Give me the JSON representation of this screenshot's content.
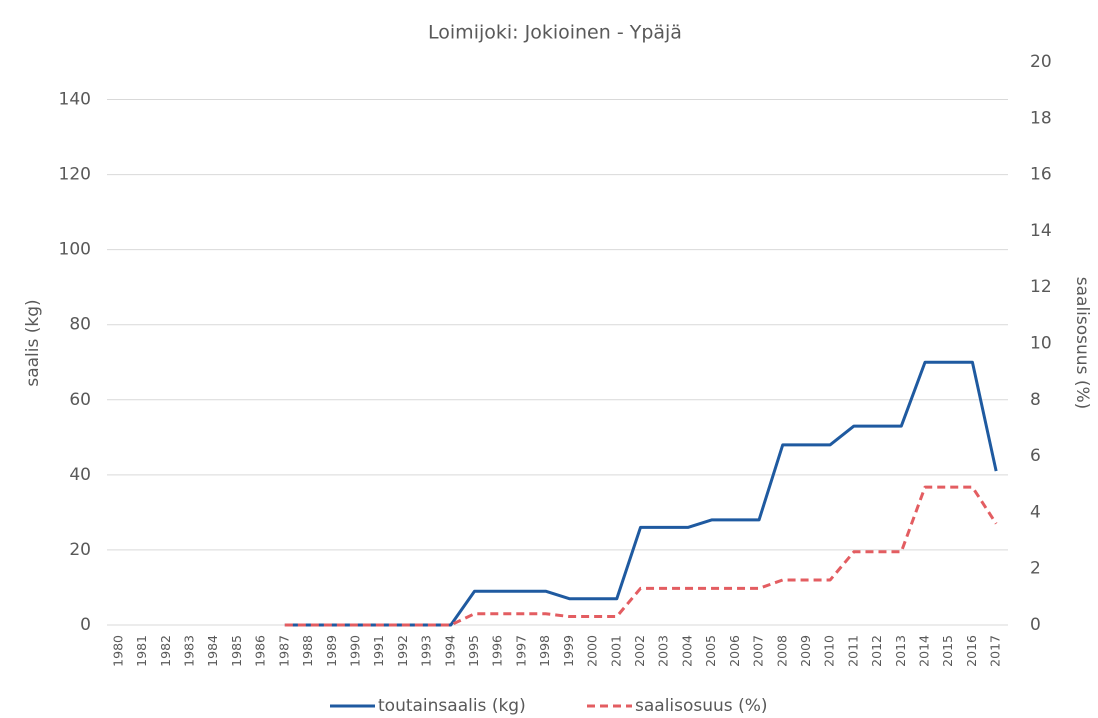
{
  "chart_data": {
    "type": "line",
    "title": "Loimijoki: Jokioinen - Ypäjä",
    "y_label": "saalis (kg)",
    "y2_label": "saalisosuus (%)",
    "categories": [
      "1980",
      "1981",
      "1982",
      "1983",
      "1984",
      "1985",
      "1986",
      "1987",
      "1988",
      "1989",
      "1990",
      "1991",
      "1992",
      "1993",
      "1994",
      "1995",
      "1996",
      "1997",
      "1998",
      "1999",
      "2000",
      "2001",
      "2002",
      "2003",
      "2004",
      "2005",
      "2006",
      "2007",
      "2008",
      "2009",
      "2010",
      "2011",
      "2012",
      "2013",
      "2014",
      "2015",
      "2016",
      "2017"
    ],
    "series": [
      {
        "name": "toutainsaalis (kg)",
        "color": "#1f5aa0",
        "dash": false,
        "values": [
          null,
          null,
          null,
          null,
          null,
          null,
          null,
          0,
          0,
          0,
          0,
          0,
          0,
          0,
          0,
          9,
          9,
          9,
          9,
          7,
          7,
          7,
          26,
          26,
          26,
          28,
          28,
          28,
          48,
          48,
          48,
          53,
          53,
          53,
          70,
          70,
          70,
          41
        ]
      },
      {
        "name": "saalisosuus (%)",
        "color": "#e35d61",
        "dash": true,
        "axis": "y2",
        "values": [
          null,
          null,
          null,
          null,
          null,
          null,
          null,
          0,
          0,
          0,
          0,
          0,
          0,
          0,
          0,
          0.4,
          0.4,
          0.4,
          0.4,
          0.3,
          0.3,
          0.3,
          1.3,
          1.3,
          1.3,
          1.3,
          1.3,
          1.3,
          1.6,
          1.6,
          1.6,
          2.6,
          2.6,
          2.6,
          4.9,
          4.9,
          4.9,
          3.6
        ]
      }
    ],
    "ylim": [
      0,
      150
    ],
    "yticks": [
      0,
      20,
      40,
      60,
      80,
      100,
      120,
      140
    ],
    "y2lim": [
      0,
      20
    ],
    "y2ticks": [
      0,
      2,
      4,
      6,
      8,
      10,
      12,
      14,
      16,
      18,
      20
    ],
    "grid": true,
    "legend": "bottom"
  }
}
